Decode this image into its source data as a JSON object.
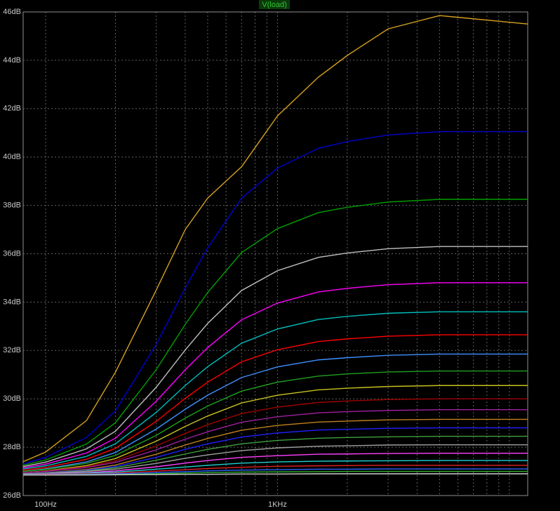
{
  "chart_data": {
    "type": "line",
    "title": "V(load)",
    "xscale": "log",
    "grid": true,
    "xlim": [
      80,
      12000
    ],
    "ylim": [
      26,
      46
    ],
    "xticks": [
      {
        "value": 100,
        "label": "100Hz"
      },
      {
        "value": 1000,
        "label": "1KHz"
      }
    ],
    "xminor": [
      200,
      300,
      400,
      500,
      600,
      700,
      800,
      900,
      2000,
      3000,
      4000,
      5000,
      6000,
      7000,
      8000,
      9000,
      10000
    ],
    "yticks": [
      {
        "value": 26,
        "label": "26dB"
      },
      {
        "value": 28,
        "label": "28dB"
      },
      {
        "value": 30,
        "label": "30dB"
      },
      {
        "value": 32,
        "label": "32dB"
      },
      {
        "value": 34,
        "label": "34dB"
      },
      {
        "value": 36,
        "label": "36dB"
      },
      {
        "value": 38,
        "label": "38dB"
      },
      {
        "value": 40,
        "label": "40dB"
      },
      {
        "value": 42,
        "label": "42dB"
      },
      {
        "value": 44,
        "label": "44dB"
      },
      {
        "value": 46,
        "label": "46dB"
      }
    ],
    "x": [
      80,
      100,
      150,
      200,
      300,
      400,
      500,
      700,
      1000,
      1500,
      2000,
      3000,
      5000,
      12000
    ],
    "series": [
      {
        "color": "#d4a020",
        "values": [
          27.4,
          27.8,
          29.1,
          31.1,
          34.5,
          37.0,
          38.3,
          39.6,
          41.7,
          43.3,
          44.2,
          45.3,
          45.85,
          45.5
        ]
      },
      {
        "color": "#0000d0",
        "values": [
          27.3,
          27.58,
          28.4,
          29.5,
          32.25,
          34.59,
          36.24,
          38.3,
          39.54,
          40.36,
          40.64,
          40.91,
          41.05,
          41.05
        ]
      },
      {
        "color": "#00a000",
        "values": [
          27.25,
          27.47,
          28.13,
          29.01,
          31.21,
          33.08,
          34.4,
          36.05,
          37.04,
          37.7,
          37.92,
          38.14,
          38.25,
          38.25
        ]
      },
      {
        "color": "#c0c0c0",
        "values": [
          27.2,
          27.38,
          27.93,
          28.66,
          30.48,
          32.02,
          33.12,
          34.48,
          35.3,
          35.85,
          36.03,
          36.21,
          36.3,
          36.3
        ]
      },
      {
        "color": "#ff00ff",
        "values": [
          27.15,
          27.3,
          27.76,
          28.37,
          29.9,
          31.2,
          32.12,
          33.27,
          33.96,
          34.42,
          34.57,
          34.72,
          34.8,
          34.8
        ]
      },
      {
        "color": "#00c0c0",
        "values": [
          27.1,
          27.23,
          27.62,
          28.14,
          29.44,
          30.55,
          31.33,
          32.3,
          32.89,
          33.28,
          33.41,
          33.54,
          33.6,
          33.6
        ]
      },
      {
        "color": "#ff0000",
        "values": [
          27.05,
          27.16,
          27.5,
          27.95,
          29.07,
          30.02,
          30.69,
          31.53,
          32.03,
          32.37,
          32.48,
          32.59,
          32.65,
          32.65
        ]
      },
      {
        "color": "#4090ff",
        "values": [
          27.0,
          27.1,
          27.39,
          27.78,
          28.75,
          29.57,
          30.15,
          30.88,
          31.32,
          31.61,
          31.7,
          31.8,
          31.85,
          31.85
        ]
      },
      {
        "color": "#20a020",
        "values": [
          27.0,
          27.08,
          27.33,
          27.66,
          28.49,
          29.2,
          29.7,
          30.32,
          30.69,
          30.94,
          31.03,
          31.11,
          31.15,
          31.15
        ]
      },
      {
        "color": "#c8c020",
        "values": [
          26.95,
          27.02,
          27.24,
          27.53,
          28.25,
          28.86,
          29.29,
          29.83,
          30.15,
          30.37,
          30.44,
          30.51,
          30.55,
          30.55
        ]
      },
      {
        "color": "#a00000",
        "values": [
          26.95,
          27.01,
          27.19,
          27.44,
          28.05,
          28.57,
          28.93,
          29.39,
          29.66,
          29.85,
          29.91,
          29.97,
          30.0,
          30.0
        ]
      },
      {
        "color": "#a020a0",
        "values": [
          26.95,
          27.0,
          27.16,
          27.37,
          27.89,
          28.33,
          28.64,
          29.03,
          29.26,
          29.42,
          29.47,
          29.52,
          29.55,
          29.55
        ]
      },
      {
        "color": "#c08020",
        "values": [
          26.9,
          26.95,
          27.08,
          27.26,
          27.71,
          28.09,
          28.36,
          28.7,
          28.9,
          29.04,
          29.08,
          29.13,
          29.15,
          29.15
        ]
      },
      {
        "color": "#2020ff",
        "values": [
          26.9,
          26.94,
          27.05,
          27.2,
          27.58,
          27.91,
          28.14,
          28.42,
          28.59,
          28.71,
          28.74,
          28.78,
          28.8,
          28.8
        ]
      },
      {
        "color": "#40a040",
        "values": [
          26.9,
          26.93,
          27.02,
          27.15,
          27.46,
          27.72,
          27.91,
          28.14,
          28.28,
          28.37,
          28.4,
          28.43,
          28.45,
          28.45
        ]
      },
      {
        "color": "#a0a0a0",
        "values": [
          26.9,
          26.92,
          27.0,
          27.09,
          27.33,
          27.54,
          27.68,
          27.86,
          27.97,
          28.04,
          28.06,
          28.09,
          28.1,
          28.1
        ]
      },
      {
        "color": "#ff40ff",
        "values": [
          26.88,
          26.9,
          26.95,
          27.02,
          27.19,
          27.34,
          27.45,
          27.58,
          27.65,
          27.71,
          27.72,
          27.74,
          27.75,
          27.75
        ]
      },
      {
        "color": "#20d0d0",
        "values": [
          26.88,
          26.89,
          26.93,
          26.97,
          27.09,
          27.18,
          27.25,
          27.34,
          27.39,
          27.42,
          27.43,
          27.44,
          27.45,
          27.45
        ]
      },
      {
        "color": "#e02020",
        "values": [
          26.87,
          26.88,
          26.9,
          26.93,
          27.01,
          27.07,
          27.12,
          27.17,
          27.21,
          27.23,
          27.24,
          27.25,
          27.25,
          27.25
        ]
      },
      {
        "color": "#3060ff",
        "values": [
          26.86,
          26.86,
          26.88,
          26.9,
          26.95,
          26.99,
          27.02,
          27.05,
          27.07,
          27.09,
          27.09,
          27.1,
          27.1,
          27.1
        ]
      },
      {
        "color": "#30b030",
        "values": [
          26.85,
          26.85,
          26.86,
          26.87,
          26.9,
          26.93,
          26.95,
          26.97,
          26.98,
          26.99,
          27.0,
          27.0,
          27.0,
          27.0
        ]
      },
      {
        "color": "#d0d0d0",
        "values": [
          26.85,
          26.85,
          26.85,
          26.86,
          26.87,
          26.88,
          26.88,
          26.89,
          26.89,
          26.9,
          26.9,
          26.9,
          26.9,
          26.9
        ]
      }
    ]
  }
}
